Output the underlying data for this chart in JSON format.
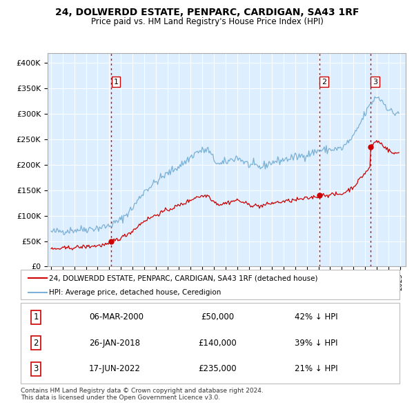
{
  "title": "24, DOLWERDD ESTATE, PENPARC, CARDIGAN, SA43 1RF",
  "subtitle": "Price paid vs. HM Land Registry's House Price Index (HPI)",
  "legend_line1": "24, DOLWERDD ESTATE, PENPARC, CARDIGAN, SA43 1RF (detached house)",
  "legend_line2": "HPI: Average price, detached house, Ceredigion",
  "sale_color": "#cc0000",
  "hpi_color": "#7ab0d4",
  "plot_bg": "#ddeeff",
  "grid_color": "#ffffff",
  "footnote1": "Contains HM Land Registry data © Crown copyright and database right 2024.",
  "footnote2": "This data is licensed under the Open Government Licence v3.0.",
  "sale_table": [
    {
      "num": "1",
      "date": "06-MAR-2000",
      "price": "£50,000",
      "hpi": "42% ↓ HPI"
    },
    {
      "num": "2",
      "date": "26-JAN-2018",
      "price": "£140,000",
      "hpi": "39% ↓ HPI"
    },
    {
      "num": "3",
      "date": "17-JUN-2022",
      "price": "£235,000",
      "hpi": "21% ↓ HPI"
    }
  ],
  "ylim": [
    0,
    420000
  ],
  "yticks": [
    0,
    50000,
    100000,
    150000,
    200000,
    250000,
    300000,
    350000,
    400000
  ],
  "ytick_labels": [
    "£0",
    "£50K",
    "£100K",
    "£150K",
    "£200K",
    "£250K",
    "£300K",
    "£350K",
    "£400K"
  ],
  "xlim_start": 1994.7,
  "xlim_end": 2025.5,
  "sale_dates_float": [
    2000.18,
    2018.07,
    2022.46
  ],
  "sale_prices": [
    50000,
    140000,
    235000
  ],
  "sale_labels": [
    "1",
    "2",
    "3"
  ],
  "hpi_control_x": [
    1995.0,
    1996.0,
    1997.0,
    1998.0,
    1999.0,
    2000.0,
    2001.0,
    2002.0,
    2003.0,
    2004.5,
    2005.5,
    2006.5,
    2007.5,
    2008.5,
    2009.0,
    2009.5,
    2010.0,
    2011.0,
    2012.0,
    2013.0,
    2014.0,
    2015.0,
    2016.0,
    2017.0,
    2018.0,
    2019.0,
    2020.0,
    2021.0,
    2022.0,
    2022.5,
    2023.0,
    2023.5,
    2024.0,
    2024.5,
    2025.0
  ],
  "hpi_control_y": [
    68000,
    70000,
    72000,
    74000,
    76000,
    80000,
    92000,
    115000,
    148000,
    175000,
    190000,
    205000,
    225000,
    230000,
    210000,
    200000,
    205000,
    215000,
    200000,
    195000,
    205000,
    210000,
    215000,
    220000,
    228000,
    230000,
    232000,
    255000,
    300000,
    320000,
    335000,
    325000,
    310000,
    300000,
    305000
  ],
  "noise_seed": 42,
  "noise_hpi": 4000,
  "noise_sale": 2000
}
